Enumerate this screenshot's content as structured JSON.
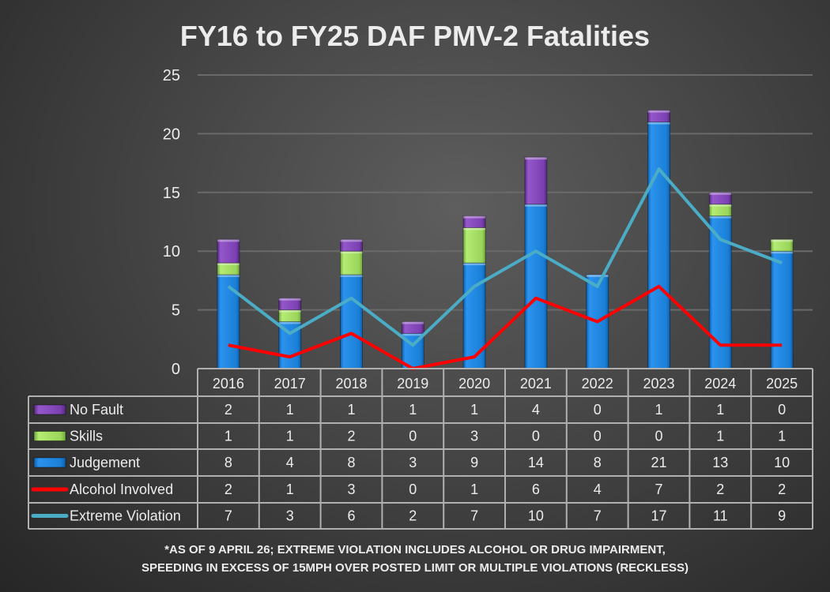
{
  "chart_data": {
    "type": "bar",
    "stacked": true,
    "title": "FY16 to FY25 DAF PMV-2 Fatalities",
    "categories": [
      "2016",
      "2017",
      "2018",
      "2019",
      "2020",
      "2021",
      "2022",
      "2023",
      "2024",
      "2025"
    ],
    "ylim": [
      0,
      25
    ],
    "yticks": [
      0,
      5,
      10,
      15,
      20,
      25
    ],
    "grid": true,
    "legend": "data-table-left",
    "series": [
      {
        "name": "No Fault",
        "kind": "bar",
        "color": "#7a3fb0",
        "values": [
          2,
          1,
          1,
          1,
          1,
          4,
          0,
          1,
          1,
          0
        ]
      },
      {
        "name": "Skills",
        "kind": "bar",
        "color": "#9bd45a",
        "values": [
          1,
          1,
          2,
          0,
          3,
          0,
          0,
          0,
          1,
          1
        ]
      },
      {
        "name": "Judgement",
        "kind": "bar",
        "color": "#1a7fd6",
        "values": [
          8,
          4,
          8,
          3,
          9,
          14,
          8,
          21,
          13,
          10
        ]
      },
      {
        "name": "Alcohol Involved",
        "kind": "line",
        "color": "#ff0000",
        "values": [
          2,
          1,
          3,
          0,
          1,
          6,
          4,
          7,
          2,
          2
        ]
      },
      {
        "name": "Extreme Violation",
        "kind": "line",
        "color": "#4bacc6",
        "values": [
          7,
          3,
          6,
          2,
          7,
          10,
          7,
          17,
          11,
          9
        ]
      }
    ],
    "footnote": [
      "*AS OF 9 APRIL 26; EXTREME VIOLATION INCLUDES ALCOHOL OR DRUG IMPAIRMENT,",
      "SPEEDING IN EXCESS OF 15MPH OVER POSTED LIMIT OR MULTIPLE VIOLATIONS (RECKLESS)"
    ]
  }
}
